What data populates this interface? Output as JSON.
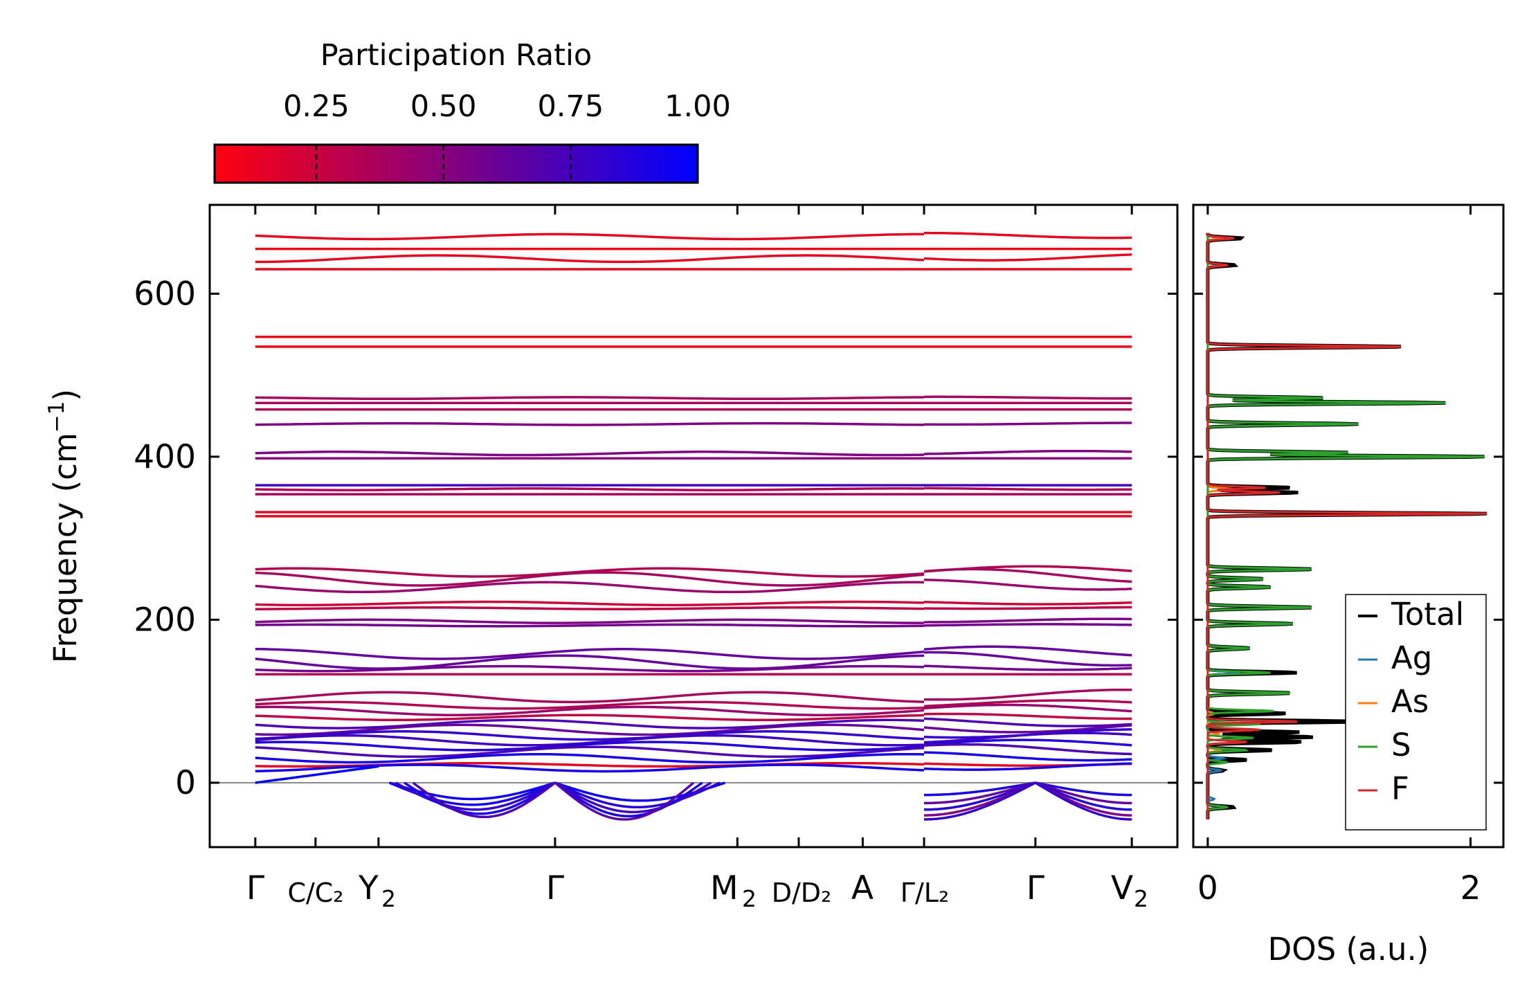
{
  "chart_data": [
    {
      "type": "line",
      "title": "",
      "ylabel": "Frequency (cm⁻¹)",
      "ylabel_main": "Frequency (cm",
      "ylabel_sup": "−1",
      "ylabel_close": ")",
      "ylim": [
        -79,
        709
      ],
      "yticks": [
        0,
        200,
        400,
        600
      ],
      "xlim": [
        -0.52,
        10.52
      ],
      "xticks": [
        {
          "x": 0.0,
          "label": "Γ"
        },
        {
          "x": 0.687,
          "label": "C/C₂"
        },
        {
          "x": 1.406,
          "label": "Y₂"
        },
        {
          "x": 3.42,
          "label": "Γ"
        },
        {
          "x": 5.5,
          "label": "M₂"
        },
        {
          "x": 6.2,
          "label": "D/D₂"
        },
        {
          "x": 6.93,
          "label": "A"
        },
        {
          "x": 7.63,
          "label": "Γ/L₂"
        },
        {
          "x": 8.9,
          "label": "Γ"
        },
        {
          "x": 10.0,
          "label": "V₂"
        }
      ],
      "xtick_text": {
        "G1": "Γ",
        "C_top": "C",
        "C_bot": "C",
        "C_sub": "2",
        "Y2": "Y",
        "Y2_sub": "2",
        "G2": "Γ",
        "M2": "M",
        "M2_sub": "2",
        "D_top": "D",
        "D_bot": "D",
        "D_sub": "2",
        "A": "A",
        "GL_top": "Γ",
        "GL_bot": "L",
        "GL_sub": "2",
        "G3": "Γ",
        "V2": "V",
        "V2_sub": "2"
      },
      "zero_line": 0,
      "bands": [
        {
          "f": 670,
          "pr": 0.1,
          "a": 3
        },
        {
          "f": 655,
          "pr": 0.08,
          "a": 0
        },
        {
          "f": 643,
          "pr": 0.1,
          "a": 4
        },
        {
          "f": 630,
          "pr": 0.08,
          "a": 0
        },
        {
          "f": 547,
          "pr": 0.05,
          "a": 0
        },
        {
          "f": 535,
          "pr": 0.07,
          "a": 0
        },
        {
          "f": 472,
          "pr": 0.35,
          "a": 1
        },
        {
          "f": 466,
          "pr": 0.35,
          "a": 0
        },
        {
          "f": 458,
          "pr": 0.3,
          "a": 0
        },
        {
          "f": 440,
          "pr": 0.5,
          "a": 1
        },
        {
          "f": 404,
          "pr": 0.5,
          "a": 2
        },
        {
          "f": 398,
          "pr": 0.45,
          "a": 0
        },
        {
          "f": 365,
          "pr": 0.75,
          "a": 0
        },
        {
          "f": 360,
          "pr": 0.3,
          "a": 1
        },
        {
          "f": 354,
          "pr": 0.35,
          "a": 0
        },
        {
          "f": 332,
          "pr": 0.1,
          "a": 0
        },
        {
          "f": 327,
          "pr": 0.1,
          "a": 0
        },
        {
          "f": 258,
          "pr": 0.3,
          "a": 5
        },
        {
          "f": 250,
          "pr": 0.35,
          "a": 8
        },
        {
          "f": 240,
          "pr": 0.4,
          "a": 6
        },
        {
          "f": 220,
          "pr": 0.2,
          "a": 2
        },
        {
          "f": 214,
          "pr": 0.25,
          "a": 1
        },
        {
          "f": 198,
          "pr": 0.5,
          "a": 2
        },
        {
          "f": 193,
          "pr": 0.55,
          "a": 1
        },
        {
          "f": 158,
          "pr": 0.6,
          "a": 6
        },
        {
          "f": 148,
          "pr": 0.6,
          "a": 8
        },
        {
          "f": 140,
          "pr": 0.55,
          "a": 3
        },
        {
          "f": 133,
          "pr": 0.3,
          "a": 0
        },
        {
          "f": 105,
          "pr": 0.35,
          "a": 6
        },
        {
          "f": 95,
          "pr": 0.3,
          "a": 4
        },
        {
          "f": 88,
          "pr": 0.4,
          "a": 5
        },
        {
          "f": 80,
          "pr": 0.25,
          "a": 3
        },
        {
          "f": 72,
          "pr": 0.7,
          "a": 5
        },
        {
          "f": 65,
          "pr": 0.6,
          "a": 6
        },
        {
          "f": 58,
          "pr": 0.8,
          "a": 5
        },
        {
          "f": 52,
          "pr": 0.75,
          "a": 6
        },
        {
          "f": 45,
          "pr": 0.85,
          "a": 5
        },
        {
          "f": 38,
          "pr": 0.7,
          "a": 6
        },
        {
          "f": 30,
          "pr": 0.9,
          "a": 5
        },
        {
          "f": 22,
          "pr": 0.1,
          "a": 2
        },
        {
          "f": 18,
          "pr": 0.9,
          "a": 4
        }
      ],
      "soft_modes": [
        {
          "x0": 1.53,
          "x1": 3.42,
          "depth": 20,
          "pr": 0.95,
          "shape": "arc"
        },
        {
          "x0": 1.53,
          "x1": 3.42,
          "depth": 27,
          "pr": 0.9,
          "shape": "arc"
        },
        {
          "x0": 1.6,
          "x1": 3.42,
          "depth": 33,
          "pr": 0.8,
          "shape": "arc"
        },
        {
          "x0": 1.7,
          "x1": 3.42,
          "depth": 38,
          "pr": 0.9,
          "shape": "arc"
        },
        {
          "x0": 1.8,
          "x1": 3.42,
          "depth": 42,
          "pr": 0.7,
          "shape": "arc"
        },
        {
          "x0": 3.42,
          "x1": 5.36,
          "depth": 22,
          "pr": 0.95,
          "shape": "arc"
        },
        {
          "x0": 3.42,
          "x1": 5.3,
          "depth": 30,
          "pr": 0.85,
          "shape": "arc"
        },
        {
          "x0": 3.42,
          "x1": 5.2,
          "depth": 36,
          "pr": 0.75,
          "shape": "arc"
        },
        {
          "x0": 3.42,
          "x1": 5.1,
          "depth": 41,
          "pr": 0.9,
          "shape": "arc"
        },
        {
          "x0": 3.42,
          "x1": 5.0,
          "depth": 45,
          "pr": 0.65,
          "shape": "arc"
        },
        {
          "x0": 7.63,
          "x1": 8.9,
          "depth": 15,
          "pr": 0.9,
          "shape": "rise"
        },
        {
          "x0": 7.63,
          "x1": 8.9,
          "depth": 25,
          "pr": 0.6,
          "shape": "rise"
        },
        {
          "x0": 7.63,
          "x1": 8.9,
          "depth": 33,
          "pr": 0.85,
          "shape": "rise"
        },
        {
          "x0": 7.63,
          "x1": 8.9,
          "depth": 40,
          "pr": 0.5,
          "shape": "rise"
        },
        {
          "x0": 7.63,
          "x1": 8.9,
          "depth": 45,
          "pr": 0.8,
          "shape": "rise"
        },
        {
          "x0": 8.9,
          "x1": 10.0,
          "depth": 15,
          "pr": 0.9,
          "shape": "fall"
        },
        {
          "x0": 8.9,
          "x1": 10.0,
          "depth": 25,
          "pr": 0.6,
          "shape": "fall"
        },
        {
          "x0": 8.9,
          "x1": 10.0,
          "depth": 33,
          "pr": 0.85,
          "shape": "fall"
        },
        {
          "x0": 8.9,
          "x1": 10.0,
          "depth": 40,
          "pr": 0.5,
          "shape": "fall"
        },
        {
          "x0": 8.9,
          "x1": 10.0,
          "depth": 45,
          "pr": 0.8,
          "shape": "fall"
        },
        {
          "x0": 0.0,
          "x1": 1.406,
          "depth": -20,
          "pr": 1.0,
          "shape": "linear"
        }
      ],
      "colorbar": {
        "label": "Participation Ratio",
        "range": [
          0.05,
          1.0
        ],
        "ticks": [
          0.25,
          0.5,
          0.75,
          1.0
        ],
        "tick_labels": [
          "0.25",
          "0.50",
          "0.75",
          "1.00"
        ],
        "low_color": "#ff0000",
        "high_color": "#0000ff"
      }
    },
    {
      "type": "line",
      "xlabel": "DOS (a.u.)",
      "xlim": [
        -0.11,
        2.25
      ],
      "xticks": [
        0,
        2
      ],
      "xtick_labels": [
        "0",
        "2"
      ],
      "ylim": [
        -79,
        709
      ],
      "legend_position": "bottom-right",
      "series": [
        {
          "name": "Total",
          "color": "#000000",
          "peaks": [
            [
              668,
              0.26
            ],
            [
              635,
              0.21
            ],
            [
              535,
              1.51
            ],
            [
              472,
              0.9
            ],
            [
              466,
              1.81
            ],
            [
              440,
              1.15
            ],
            [
              405,
              1.07
            ],
            [
              400,
              2.13
            ],
            [
              362,
              0.64
            ],
            [
              356,
              0.69
            ],
            [
              330,
              2.15
            ],
            [
              262,
              0.81
            ],
            [
              250,
              0.43
            ],
            [
              240,
              0.48
            ],
            [
              215,
              0.81
            ],
            [
              195,
              0.65
            ],
            [
              165,
              0.32
            ],
            [
              135,
              0.68
            ],
            [
              110,
              0.64
            ],
            [
              85,
              0.6
            ],
            [
              75,
              1.2
            ],
            [
              62,
              0.7
            ],
            [
              56,
              0.81
            ],
            [
              50,
              0.72
            ],
            [
              40,
              0.5
            ],
            [
              28,
              0.3
            ],
            [
              15,
              0.12
            ],
            [
              -30,
              0.2
            ]
          ]
        },
        {
          "name": "Ag",
          "color": "#1f77b4",
          "peaks": [
            [
              135,
              0.25
            ],
            [
              60,
              0.08
            ],
            [
              30,
              0.12
            ],
            [
              15,
              0.1
            ],
            [
              -20,
              0.05
            ]
          ]
        },
        {
          "name": "As",
          "color": "#ff7f0e",
          "peaks": [
            [
              668,
              0.12
            ],
            [
              360,
              0.2
            ],
            [
              85,
              0.05
            ],
            [
              60,
              0.08
            ],
            [
              40,
              0.1
            ]
          ]
        },
        {
          "name": "S",
          "color": "#2ca02c",
          "peaks": [
            [
              472,
              0.9
            ],
            [
              466,
              1.81
            ],
            [
              440,
              1.15
            ],
            [
              405,
              1.07
            ],
            [
              400,
              2.13
            ],
            [
              262,
              0.81
            ],
            [
              250,
              0.43
            ],
            [
              240,
              0.48
            ],
            [
              215,
              0.81
            ],
            [
              195,
              0.65
            ],
            [
              165,
              0.32
            ],
            [
              135,
              0.48
            ],
            [
              110,
              0.64
            ],
            [
              88,
              0.5
            ],
            [
              72,
              0.4
            ],
            [
              55,
              0.35
            ],
            [
              40,
              0.3
            ],
            [
              25,
              0.15
            ],
            [
              -30,
              0.15
            ]
          ]
        },
        {
          "name": "F",
          "color": "#d62728",
          "peaks": [
            [
              668,
              0.2
            ],
            [
              635,
              0.15
            ],
            [
              535,
              1.51
            ],
            [
              362,
              0.45
            ],
            [
              356,
              0.55
            ],
            [
              330,
              2.15
            ],
            [
              75,
              0.7
            ],
            [
              65,
              0.4
            ],
            [
              50,
              0.3
            ]
          ]
        }
      ]
    }
  ]
}
